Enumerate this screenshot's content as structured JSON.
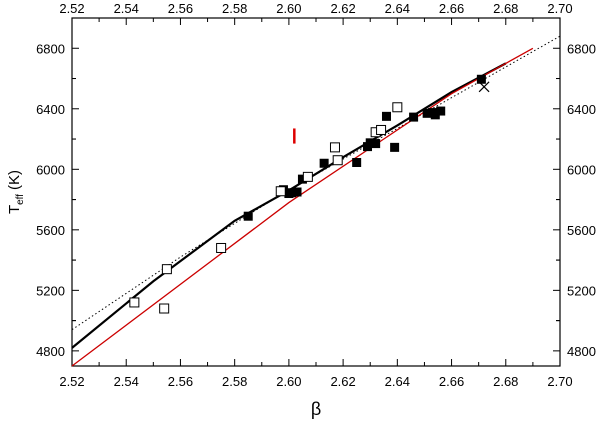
{
  "chart_data": {
    "type": "scatter",
    "title": "",
    "xlabel": "β",
    "ylabel_main": "T",
    "ylabel_sub": "eff",
    "ylabel_unit": "(K)",
    "xlim": [
      2.52,
      2.7
    ],
    "ylim": [
      4700,
      7000
    ],
    "xticks": [
      "2.52",
      "2.54",
      "2.56",
      "2.58",
      "2.60",
      "2.62",
      "2.64",
      "2.66",
      "2.68",
      "2.70"
    ],
    "yticks": [
      "4800",
      "5200",
      "5600",
      "6000",
      "6400",
      "6800"
    ],
    "grid": false,
    "series": [
      {
        "marker": "filled-square",
        "color": "#000000",
        "points": [
          [
            2.585,
            5690
          ],
          [
            2.598,
            5865
          ],
          [
            2.6,
            5840
          ],
          [
            2.601,
            5845
          ],
          [
            2.603,
            5850
          ],
          [
            2.605,
            5935
          ],
          [
            2.613,
            6040
          ],
          [
            2.625,
            6045
          ],
          [
            2.629,
            6150
          ],
          [
            2.63,
            6175
          ],
          [
            2.632,
            6170
          ],
          [
            2.636,
            6350
          ],
          [
            2.639,
            6145
          ],
          [
            2.646,
            6345
          ],
          [
            2.651,
            6370
          ],
          [
            2.653,
            6375
          ],
          [
            2.654,
            6360
          ],
          [
            2.656,
            6385
          ],
          [
            2.671,
            6595
          ]
        ]
      },
      {
        "marker": "open-square",
        "color": "#000000",
        "points": [
          [
            2.543,
            5120
          ],
          [
            2.554,
            5080
          ],
          [
            2.555,
            5340
          ],
          [
            2.575,
            5480
          ],
          [
            2.597,
            5855
          ],
          [
            2.607,
            5950
          ],
          [
            2.617,
            6145
          ],
          [
            2.618,
            6060
          ],
          [
            2.632,
            6245
          ],
          [
            2.634,
            6260
          ],
          [
            2.64,
            6410
          ]
        ]
      },
      {
        "marker": "cross",
        "color": "#000000",
        "points": [
          [
            2.672,
            6545
          ]
        ]
      }
    ],
    "lines": [
      {
        "style": "solid-thick",
        "color": "#000000",
        "x": [
          2.52,
          2.55,
          2.58,
          2.6,
          2.62,
          2.64,
          2.66,
          2.68
        ],
        "y": [
          4820,
          5260,
          5660,
          5860,
          6080,
          6290,
          6510,
          6700
        ]
      },
      {
        "style": "dotted",
        "color": "#000000",
        "x": [
          2.52,
          2.56,
          2.6,
          2.64,
          2.7
        ],
        "y": [
          4940,
          5420,
          5865,
          6270,
          6880
        ]
      },
      {
        "style": "solid-thin",
        "color": "#cc0000",
        "x": [
          2.52,
          2.6,
          2.66,
          2.69
        ],
        "y": [
          4700,
          5780,
          6500,
          6800
        ]
      }
    ],
    "error_bar": {
      "color": "#dd0000",
      "x": 2.602,
      "y_low": 6170,
      "y_high": 6270
    }
  }
}
